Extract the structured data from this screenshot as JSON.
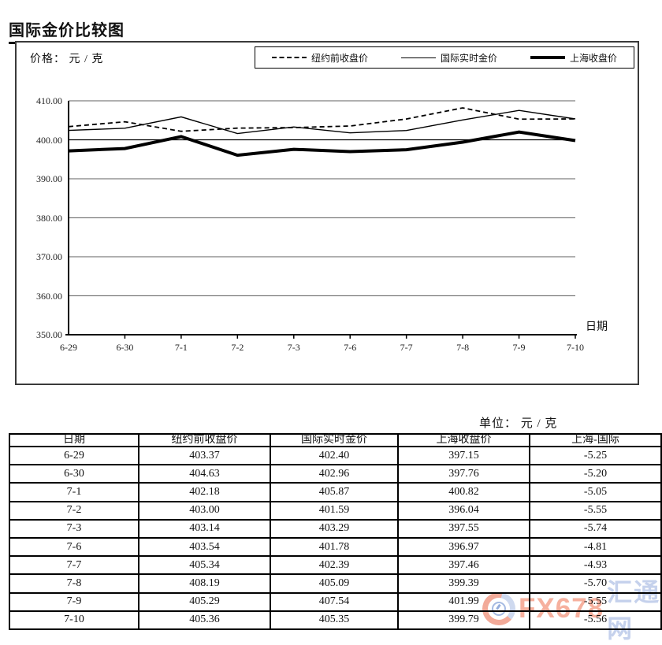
{
  "title": "国际金价比较图",
  "chart": {
    "price_unit_label": "价格： 元 / 克",
    "x_axis_title": "日期",
    "legend": [
      {
        "label": "纽约前收盘价",
        "style": "dashed"
      },
      {
        "label": "国际实时金价",
        "style": "thin"
      },
      {
        "label": "上海收盘价",
        "style": "thick"
      }
    ]
  },
  "chart_data": {
    "type": "line",
    "categories": [
      "6-29",
      "6-30",
      "7-1",
      "7-2",
      "7-3",
      "7-6",
      "7-7",
      "7-8",
      "7-9",
      "7-10"
    ],
    "series": [
      {
        "name": "纽约前收盘价",
        "style": "dashed",
        "values": [
          403.37,
          404.63,
          402.18,
          403.0,
          403.14,
          403.54,
          405.34,
          408.19,
          405.29,
          405.36
        ]
      },
      {
        "name": "国际实时金价",
        "style": "solid-thin",
        "values": [
          402.4,
          402.96,
          405.87,
          401.59,
          403.29,
          401.78,
          402.39,
          405.09,
          407.54,
          405.35
        ]
      },
      {
        "name": "上海收盘价",
        "style": "solid-thick",
        "values": [
          397.15,
          397.76,
          400.82,
          396.04,
          397.55,
          396.97,
          397.46,
          399.39,
          401.99,
          399.79
        ]
      }
    ],
    "title": "国际金价比较图",
    "xlabel": "日期",
    "ylabel": "价格： 元 / 克",
    "ylim": [
      350,
      410
    ],
    "yticks": [
      350,
      360,
      370,
      380,
      390,
      400,
      410
    ],
    "grid": true,
    "legend_position": "top",
    "line_color": "#000000",
    "gridline_color": "#808080",
    "highlight_gridline": 400
  },
  "table": {
    "unit_label": "单位： 元 / 克",
    "headers": [
      "日期",
      "纽约前收盘价",
      "国际实时金价",
      "上海收盘价",
      "上海-国际"
    ],
    "rows": [
      [
        "6-29",
        "403.37",
        "402.40",
        "397.15",
        "-5.25"
      ],
      [
        "6-30",
        "404.63",
        "402.96",
        "397.76",
        "-5.20"
      ],
      [
        "7-1",
        "402.18",
        "405.87",
        "400.82",
        "-5.05"
      ],
      [
        "7-2",
        "403.00",
        "401.59",
        "396.04",
        "-5.55"
      ],
      [
        "7-3",
        "403.14",
        "403.29",
        "397.55",
        "-5.74"
      ],
      [
        "7-6",
        "403.54",
        "401.78",
        "396.97",
        "-4.81"
      ],
      [
        "7-7",
        "405.34",
        "402.39",
        "397.46",
        "-4.93"
      ],
      [
        "7-8",
        "408.19",
        "405.09",
        "399.39",
        "-5.70"
      ],
      [
        "7-9",
        "405.29",
        "407.54",
        "401.99",
        "-5.55"
      ],
      [
        "7-10",
        "405.36",
        "405.35",
        "399.79",
        "-5.56"
      ]
    ]
  },
  "watermark": {
    "brand": "FX678",
    "site": "汇通网",
    "brand_color": "#f49d87",
    "site_color": "#b7c6e8"
  }
}
